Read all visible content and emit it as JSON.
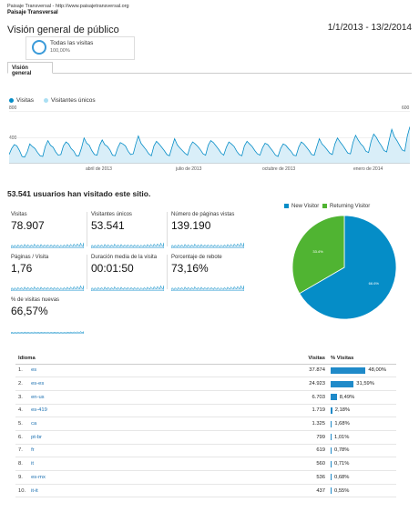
{
  "header": {
    "line1": "Paisaje Transversal - http://www.paisajetransversal.org",
    "line2": "Paisaje Transversal",
    "title": "Visión general de público",
    "date_range": "1/1/2013 - 13/2/2014"
  },
  "segment": {
    "label": "Todas las visitas",
    "pct": "100,00%"
  },
  "tab": {
    "label": "Visión general"
  },
  "legend": {
    "visits": "Visitas",
    "unique": "Visitantes únicos",
    "visits_color": "#058dc7",
    "unique_color": "#aadff3"
  },
  "chart_data": {
    "type": "area",
    "y_ticks": [
      "800",
      "400"
    ],
    "y_right_ticks": [
      "600"
    ],
    "ylim": [
      0,
      800
    ],
    "x_tick_labels": [
      "abril de 2013",
      "julio de 2013",
      "octubre de 2013",
      "enero de 2014"
    ],
    "series": [
      {
        "name": "Visitas",
        "values": [
          140,
          230,
          290,
          270,
          200,
          110,
          100,
          180,
          300,
          260,
          230,
          170,
          120,
          110,
          260,
          350,
          280,
          250,
          180,
          130,
          140,
          270,
          330,
          300,
          230,
          190,
          120,
          120,
          240,
          390,
          310,
          280,
          200,
          140,
          130,
          280,
          360,
          290,
          260,
          210,
          130,
          120,
          240,
          320,
          300,
          270,
          190,
          140,
          150,
          300,
          420,
          310,
          260,
          210,
          150,
          120,
          270,
          340,
          300,
          250,
          200,
          140,
          120,
          250,
          380,
          290,
          240,
          200,
          160,
          130,
          260,
          330,
          300,
          260,
          210,
          150,
          130,
          280,
          350,
          320,
          270,
          220,
          160,
          130,
          250,
          330,
          300,
          260,
          190,
          140,
          120,
          270,
          340,
          300,
          260,
          200,
          150,
          130,
          240,
          310,
          290,
          240,
          190,
          130,
          110,
          230,
          300,
          280,
          230,
          190,
          130,
          120,
          250,
          330,
          300,
          250,
          200,
          140,
          130,
          260,
          380,
          300,
          260,
          210,
          160,
          140,
          300,
          390,
          330,
          280,
          220,
          160,
          150,
          320,
          430,
          360,
          300,
          260,
          190,
          170,
          340,
          450,
          400,
          330,
          270,
          200,
          180,
          360,
          520,
          410,
          350,
          280,
          210,
          190,
          420,
          560
        ]
      }
    ]
  },
  "summary": {
    "headline": "53.541 usuarios han visitado este sitio."
  },
  "metrics": [
    {
      "label": "Visitas",
      "value": "78.907"
    },
    {
      "label": "Visitantes únicos",
      "value": "53.541"
    },
    {
      "label": "Número de páginas vistas",
      "value": "139.190"
    },
    {
      "label": "Páginas / Visita",
      "value": "1,76"
    },
    {
      "label": "Duración media de la visita",
      "value": "00:01:50"
    },
    {
      "label": "Porcentaje de rebote",
      "value": "73,16%"
    },
    {
      "label": "% de visitas nuevas",
      "value": "66,57%"
    }
  ],
  "pie": {
    "legend_new": "New Visitor",
    "legend_returning": "Returning Visitor",
    "new_color": "#058dc7",
    "returning_color": "#50b432",
    "new_pct": 66.6,
    "returning_pct": 33.4,
    "new_label": "66.6%",
    "returning_label": "33.4%"
  },
  "table": {
    "headers": {
      "lang": "Idioma",
      "visits": "Visitas",
      "pct": "% Visitas"
    },
    "rows": [
      {
        "idx": "1.",
        "lang": "es",
        "visits": "37.874",
        "pct": "48,00%",
        "frac": 0.48
      },
      {
        "idx": "2.",
        "lang": "es-es",
        "visits": "24.923",
        "pct": "31,59%",
        "frac": 0.3159
      },
      {
        "idx": "3.",
        "lang": "en-us",
        "visits": "6.703",
        "pct": "8,49%",
        "frac": 0.0849
      },
      {
        "idx": "4.",
        "lang": "es-419",
        "visits": "1.719",
        "pct": "2,18%",
        "frac": 0.0218
      },
      {
        "idx": "5.",
        "lang": "ca",
        "visits": "1.325",
        "pct": "1,68%",
        "frac": 0.0168
      },
      {
        "idx": "6.",
        "lang": "pt-br",
        "visits": "799",
        "pct": "1,01%",
        "frac": 0.0101
      },
      {
        "idx": "7.",
        "lang": "fr",
        "visits": "619",
        "pct": "0,78%",
        "frac": 0.0078
      },
      {
        "idx": "8.",
        "lang": "it",
        "visits": "560",
        "pct": "0,71%",
        "frac": 0.0071
      },
      {
        "idx": "9.",
        "lang": "es-mx",
        "visits": "536",
        "pct": "0,68%",
        "frac": 0.0068
      },
      {
        "idx": "10.",
        "lang": "it-it",
        "visits": "437",
        "pct": "0,55%",
        "frac": 0.0055
      }
    ]
  }
}
